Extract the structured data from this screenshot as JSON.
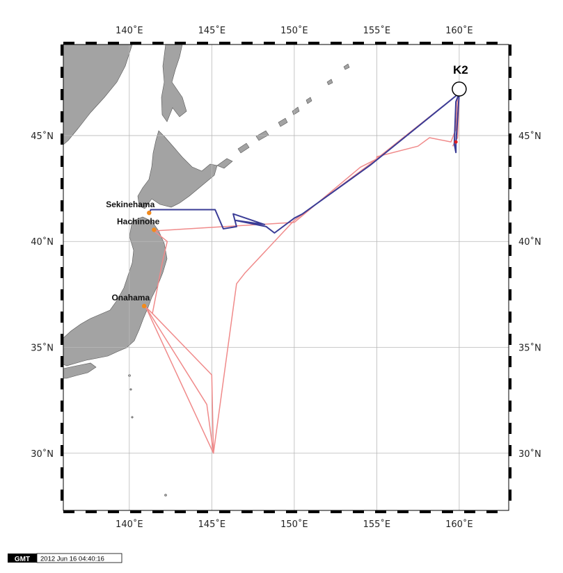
{
  "map": {
    "lon_range": [
      136,
      163
    ],
    "lat_range": [
      27.3,
      49.3
    ],
    "grid_lons": [
      140,
      145,
      150,
      155,
      160
    ],
    "grid_lats": [
      30,
      35,
      40,
      45
    ],
    "lon_labels": [
      "140˚E",
      "145˚E",
      "150˚E",
      "155˚E",
      "160˚E"
    ],
    "lat_labels": [
      "30˚N",
      "35˚N",
      "40˚N",
      "45˚N"
    ],
    "colors": {
      "land": "#a3a3a3",
      "grid": "#b8b8b8",
      "track_outbound": "#f08a8a",
      "track_return": "#3a3c96",
      "port": "#f28a1c"
    }
  },
  "ports": [
    {
      "name": "Sekinehama",
      "lon": 141.2,
      "lat": 41.35
    },
    {
      "name": "Hachinohe",
      "lon": 141.5,
      "lat": 40.55
    },
    {
      "name": "Onahama",
      "lon": 140.9,
      "lat": 36.95
    }
  ],
  "station": {
    "name": "K2",
    "lon": 160.0,
    "lat": 47.0
  },
  "tracks": {
    "outbound": [
      [
        141.5,
        40.5
      ],
      [
        142.3,
        40.0
      ],
      [
        142.0,
        39.0
      ],
      [
        141.4,
        36.6
      ],
      [
        145.0,
        33.7
      ],
      [
        145.1,
        30.0
      ],
      [
        141.0,
        36.9
      ],
      [
        144.7,
        32.3
      ],
      [
        145.1,
        30.0
      ],
      [
        141.0,
        36.9
      ],
      [
        141.4,
        36.6
      ],
      [
        142.0,
        39.0
      ],
      [
        142.3,
        40.0
      ],
      [
        141.5,
        40.5
      ],
      [
        150.0,
        40.9
      ],
      [
        154.0,
        43.5
      ],
      [
        155.0,
        43.9
      ],
      [
        155.0,
        44.0
      ],
      [
        157.5,
        44.5
      ],
      [
        158.2,
        44.9
      ],
      [
        159.5,
        44.7
      ],
      [
        159.8,
        45.3
      ],
      [
        159.9,
        46.8
      ],
      [
        160.0,
        47.0
      ],
      [
        159.9,
        44.9
      ],
      [
        159.6,
        44.5
      ]
    ],
    "outbound_b": [
      [
        160.0,
        47.0
      ],
      [
        154.5,
        43.6
      ],
      [
        150.0,
        41.0
      ],
      [
        147.0,
        38.5
      ],
      [
        146.5,
        38.0
      ],
      [
        145.1,
        30.0
      ]
    ],
    "return": [
      [
        160.0,
        47.0
      ],
      [
        159.8,
        46.6
      ],
      [
        159.7,
        44.6
      ],
      [
        159.8,
        44.2
      ],
      [
        159.8,
        44.6
      ],
      [
        160.0,
        47.0
      ],
      [
        154.6,
        43.6
      ],
      [
        150.5,
        41.3
      ],
      [
        150.0,
        41.1
      ],
      [
        148.8,
        40.4
      ],
      [
        148.3,
        40.7
      ],
      [
        146.4,
        41.0
      ],
      [
        148.2,
        40.8
      ],
      [
        146.3,
        41.3
      ],
      [
        146.5,
        40.7
      ],
      [
        145.7,
        40.6
      ],
      [
        145.2,
        41.5
      ],
      [
        141.3,
        41.5
      ],
      [
        141.2,
        41.3
      ]
    ]
  },
  "stamp": {
    "badge": "GMT",
    "text": "2012 Jun 16 04:40:16"
  }
}
